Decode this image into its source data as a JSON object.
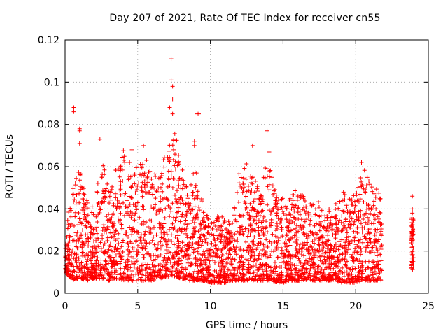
{
  "chart_data": {
    "type": "scatter",
    "title": "Day 207 of 2021, Rate Of TEC Index for receiver cn55",
    "xlabel": "GPS time / hours",
    "ylabel": "ROTI / TECUs",
    "xlim": [
      0,
      25
    ],
    "ylim": [
      0,
      0.12
    ],
    "x_ticks": [
      "0",
      "5",
      "10",
      "15",
      "20",
      "25"
    ],
    "y_ticks": [
      "0",
      "0.02",
      "0.04",
      "0.06",
      "0.08",
      "0.1",
      "0.12"
    ],
    "grid": true,
    "legend": "none",
    "marker": "+",
    "color": "#ff0000",
    "envelope": {
      "x": [
        0,
        0.5,
        1,
        1.5,
        2,
        2.5,
        3,
        3.5,
        4,
        4.5,
        5,
        5.5,
        6,
        6.5,
        7,
        7.5,
        8,
        8.5,
        9,
        9.5,
        10,
        10.5,
        11,
        11.5,
        12,
        12.5,
        13,
        13.5,
        14,
        14.5,
        15,
        15.5,
        16,
        16.5,
        17,
        17.5,
        18,
        18.5,
        19,
        19.5,
        20,
        20.5,
        21,
        21.5,
        21.8
      ],
      "upper": [
        0.03,
        0.05,
        0.06,
        0.045,
        0.04,
        0.065,
        0.05,
        0.06,
        0.068,
        0.062,
        0.06,
        0.068,
        0.058,
        0.055,
        0.07,
        0.08,
        0.06,
        0.05,
        0.065,
        0.04,
        0.035,
        0.038,
        0.035,
        0.035,
        0.06,
        0.062,
        0.055,
        0.05,
        0.07,
        0.05,
        0.045,
        0.045,
        0.052,
        0.045,
        0.043,
        0.044,
        0.043,
        0.04,
        0.05,
        0.045,
        0.05,
        0.06,
        0.052,
        0.05,
        0.045
      ],
      "lower": [
        0.01,
        0.006,
        0.007,
        0.006,
        0.007,
        0.007,
        0.006,
        0.007,
        0.006,
        0.006,
        0.006,
        0.006,
        0.006,
        0.007,
        0.008,
        0.008,
        0.007,
        0.006,
        0.006,
        0.006,
        0.005,
        0.005,
        0.005,
        0.006,
        0.006,
        0.006,
        0.006,
        0.006,
        0.006,
        0.005,
        0.005,
        0.006,
        0.006,
        0.006,
        0.006,
        0.006,
        0.006,
        0.006,
        0.005,
        0.005,
        0.005,
        0.006,
        0.006,
        0.006,
        0.006
      ]
    },
    "outliers": [
      [
        0.6,
        0.088
      ],
      [
        0.6,
        0.086
      ],
      [
        1.0,
        0.078
      ],
      [
        1.0,
        0.077
      ],
      [
        1.0,
        0.071
      ],
      [
        2.4,
        0.073
      ],
      [
        4.6,
        0.068
      ],
      [
        5.4,
        0.07
      ],
      [
        7.3,
        0.111
      ],
      [
        7.3,
        0.101
      ],
      [
        7.4,
        0.098
      ],
      [
        7.4,
        0.092
      ],
      [
        7.2,
        0.088
      ],
      [
        7.4,
        0.085
      ],
      [
        9.2,
        0.085
      ],
      [
        9.1,
        0.085
      ],
      [
        8.9,
        0.072
      ],
      [
        8.9,
        0.07
      ],
      [
        13.9,
        0.077
      ],
      [
        12.9,
        0.07
      ],
      [
        20.4,
        0.062
      ],
      [
        23.9,
        0.046
      ],
      [
        23.9,
        0.04
      ],
      [
        23.9,
        0.038
      ]
    ],
    "late_segment": {
      "x": 23.9,
      "upper": 0.036,
      "lower": 0.01
    }
  }
}
